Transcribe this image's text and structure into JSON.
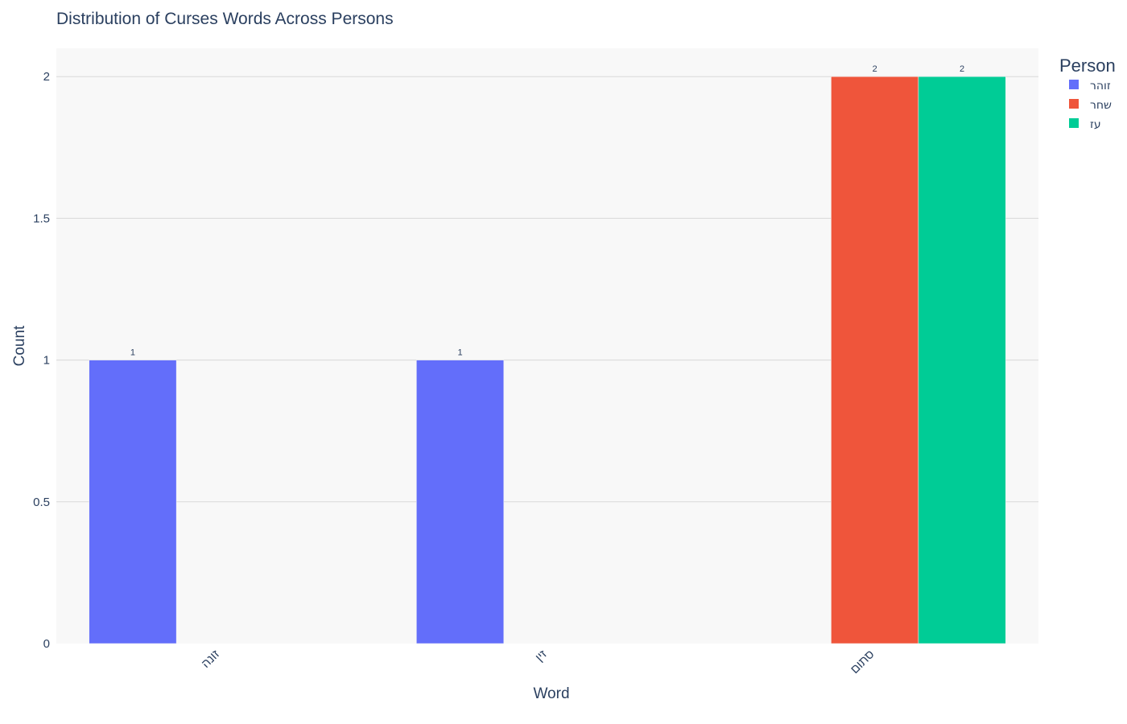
{
  "chart_data": {
    "type": "bar",
    "title": "Distribution of Curses Words Across Persons",
    "xlabel": "Word",
    "ylabel": "Count",
    "categories": [
      "זונה",
      "זין",
      "סתום"
    ],
    "ylim": [
      0,
      2.1
    ],
    "yticks": [
      0,
      0.5,
      1,
      1.5,
      2
    ],
    "ytick_labels": [
      "0",
      "0.5",
      "1",
      "1.5",
      "2"
    ],
    "legend_title": "Person",
    "legend_position": "top-right",
    "grid": true,
    "series": [
      {
        "name": "זוהר",
        "color": "#636efa",
        "values": [
          1,
          1,
          0
        ]
      },
      {
        "name": "שחר",
        "color": "#ef553b",
        "values": [
          0,
          0,
          2
        ]
      },
      {
        "name": "עז",
        "color": "#00cc96",
        "values": [
          0,
          0,
          2
        ]
      }
    ]
  }
}
